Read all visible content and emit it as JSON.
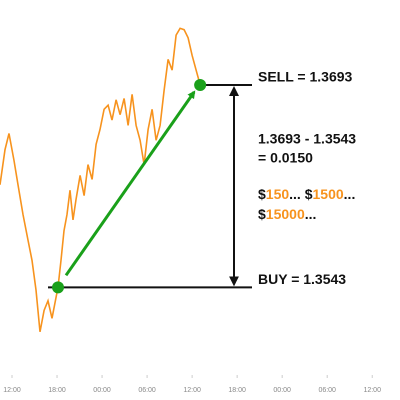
{
  "chart_data": {
    "type": "line",
    "x": [
      -1.6,
      -0.93,
      -0.4,
      0.27,
      0.8,
      1.47,
      2.13,
      2.67,
      3.2,
      3.73,
      4.27,
      4.8,
      5.33,
      6.13,
      6.53,
      6.93,
      7.33,
      7.73,
      8.13,
      8.53,
      9.07,
      9.6,
      10.13,
      10.67,
      11.2,
      11.73,
      12.27,
      12.8,
      13.33,
      13.87,
      14.4,
      14.93,
      15.47,
      16,
      16.53,
      17.07,
      17.6,
      18.13,
      18.67,
      19.2,
      19.73,
      20.27,
      20.8,
      21.33,
      21.87,
      22.4,
      22.93,
      23.47,
      24,
      24.53,
      25.07
    ],
    "series": [
      {
        "color": "#f7931e",
        "values": [
          1.3619,
          1.3645,
          1.3657,
          1.3637,
          1.3619,
          1.3597,
          1.3578,
          1.3563,
          1.3541,
          1.351,
          1.3526,
          1.3533,
          1.352,
          1.3543,
          1.3563,
          1.3585,
          1.3597,
          1.3615,
          1.3593,
          1.3608,
          1.3626,
          1.3611,
          1.3634,
          1.3623,
          1.3649,
          1.366,
          1.3675,
          1.3678,
          1.3667,
          1.3682,
          1.3671,
          1.3683,
          1.3663,
          1.3686,
          1.3663,
          1.3652,
          1.3634,
          1.366,
          1.3675,
          1.3652,
          1.3663,
          1.3689,
          1.3712,
          1.3704,
          1.373,
          1.3735,
          1.3734,
          1.3728,
          1.3715,
          1.3704,
          1.3693
        ]
      }
    ],
    "xlim": [
      -1.6,
      51.7
    ],
    "ylim": [
      1.3478,
      1.3756
    ],
    "xticks": [
      {
        "value": 0,
        "label": "12:00"
      },
      {
        "value": 6,
        "label": "18:00"
      },
      {
        "value": 12,
        "label": "00:00"
      },
      {
        "value": 18,
        "label": "06:00"
      },
      {
        "value": 24,
        "label": "12:00"
      },
      {
        "value": 30,
        "label": "18:00"
      },
      {
        "value": 36,
        "label": "00:00"
      },
      {
        "value": 42,
        "label": "06:00"
      },
      {
        "value": 48,
        "label": "12:00"
      }
    ],
    "marker_color": "#1aa01a",
    "markers": [
      {
        "label": "BUY = 1.3543",
        "x": 6.13,
        "value": 1.3543
      },
      {
        "label": "SELL = 1.3693",
        "x": 25.07,
        "value": 1.3693
      }
    ],
    "calculation": [
      "1.3693 - 1.3543",
      "= 0.0150"
    ],
    "profit_lines": [
      [
        {
          "text": "$",
          "color": "#111111"
        },
        {
          "text": "150",
          "color": "#f7931e"
        },
        {
          "text": "... $",
          "color": "#111111"
        },
        {
          "text": "1500",
          "color": "#f7931e"
        },
        {
          "text": "...",
          "color": "#111111"
        }
      ],
      [
        {
          "text": "$",
          "color": "#111111"
        },
        {
          "text": "15000",
          "color": "#f7931e"
        },
        {
          "text": "...",
          "color": "#111111"
        }
      ]
    ]
  }
}
